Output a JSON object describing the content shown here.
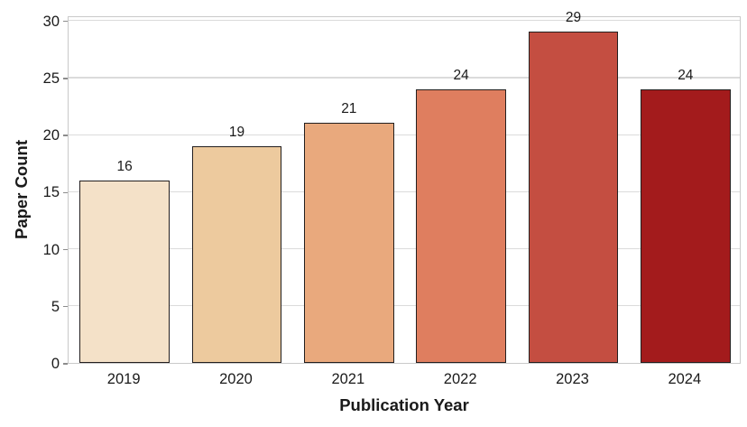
{
  "chart_data": {
    "type": "bar",
    "title": "",
    "xlabel": "Publication Year",
    "ylabel": "Paper Count",
    "categories": [
      "2019",
      "2020",
      "2021",
      "2022",
      "2023",
      "2024"
    ],
    "values": [
      16,
      19,
      21,
      24,
      29,
      24
    ],
    "bar_labels": [
      "16",
      "19",
      "21",
      "24",
      "29",
      "24"
    ],
    "bar_colors": [
      "#f4e1c8",
      "#edca9e",
      "#e9a97d",
      "#df7e5f",
      "#c44e41",
      "#a31b1c"
    ],
    "bar_edge_color": "#231f1f",
    "yticks": [
      0,
      5,
      10,
      15,
      20,
      25,
      30
    ],
    "ylim": [
      0,
      30.45
    ],
    "bar_width_fraction": 0.8,
    "grid": "horizontal",
    "grid_color": "#dbdbdb",
    "axis_border_color": "#c9c9c9",
    "tick_color": "#8c8c8c",
    "text_color": "#1a1a1a",
    "background": "#ffffff",
    "legend": "none"
  }
}
